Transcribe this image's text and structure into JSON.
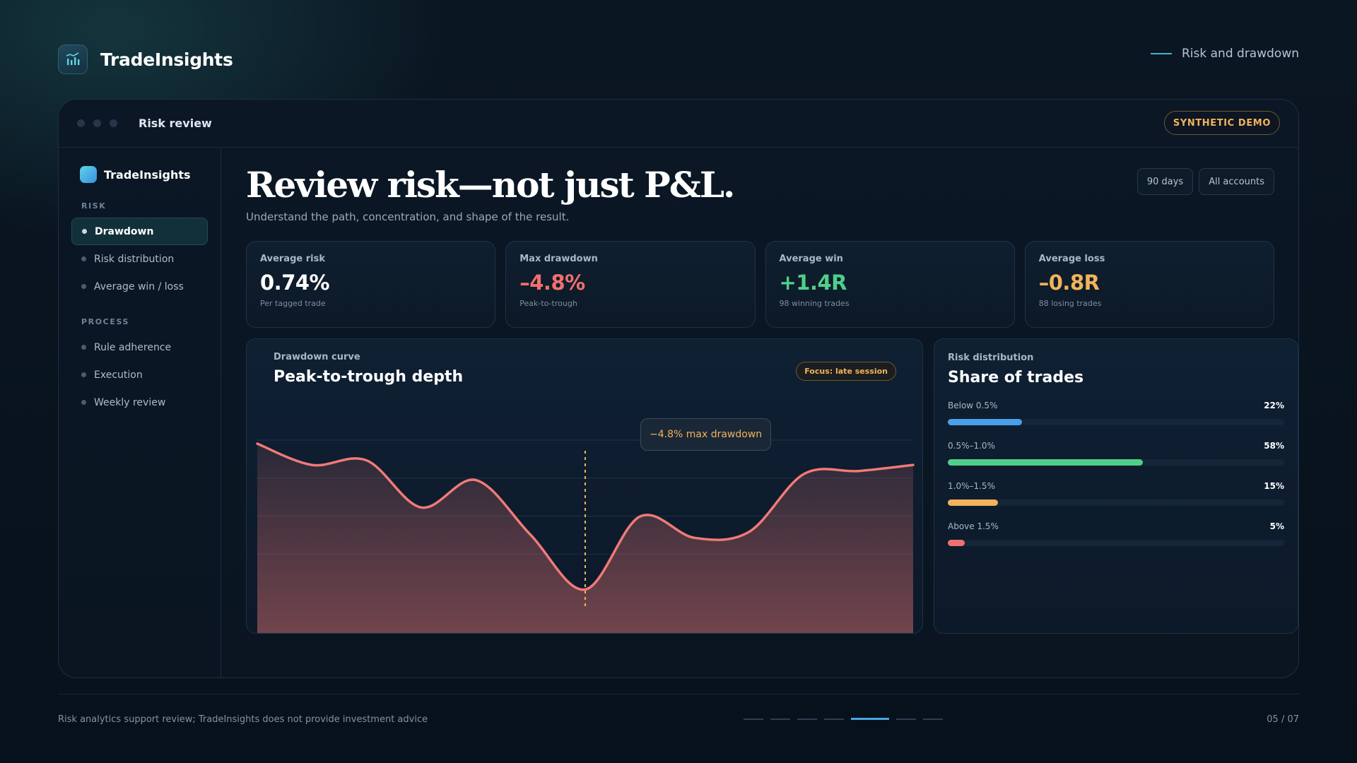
{
  "header": {
    "brand": "TradeInsights",
    "brand_icon": "bar-chart-icon",
    "section_label": "Risk and drawdown"
  },
  "window": {
    "title": "Risk review",
    "badge": "SYNTHETIC DEMO"
  },
  "sidebar": {
    "brand": "TradeInsights",
    "groups": [
      {
        "label": "RISK",
        "items": [
          {
            "label": "Drawdown",
            "active": true
          },
          {
            "label": "Risk distribution",
            "active": false
          },
          {
            "label": "Average win / loss",
            "active": false
          }
        ]
      },
      {
        "label": "PROCESS",
        "items": [
          {
            "label": "Rule adherence",
            "active": false
          },
          {
            "label": "Execution",
            "active": false
          },
          {
            "label": "Weekly review",
            "active": false
          }
        ]
      }
    ]
  },
  "main": {
    "headline": "Review risk—not just P&L.",
    "subline": "Understand the path, concentration, and shape of the result.",
    "filters": {
      "period": "90 days",
      "accounts": "All accounts"
    }
  },
  "kpis": [
    {
      "label": "Average risk",
      "value": "0.74%",
      "note": "Per tagged trade",
      "color": "#ffffff"
    },
    {
      "label": "Max drawdown",
      "value": "–4.8%",
      "note": "Peak-to-trough",
      "color": "#f0706e"
    },
    {
      "label": "Average win",
      "value": "+1.4R",
      "note": "98 winning trades",
      "color": "#4fcf8a"
    },
    {
      "label": "Average loss",
      "value": "–0.8R",
      "note": "88 losing trades",
      "color": "#f2b35a"
    }
  ],
  "drawdown_card": {
    "eyebrow": "Drawdown curve",
    "title": "Peak-to-trough depth",
    "badge": "Focus: late session",
    "tooltip": "−4.8% max drawdown",
    "line_color": "#f07a78",
    "marker_color": "#f2b35a"
  },
  "distribution_card": {
    "eyebrow": "Risk distribution",
    "title": "Share of trades"
  },
  "chart_data": [
    {
      "type": "area",
      "title": "Peak-to-trough depth",
      "grid": true,
      "x": [
        0,
        1,
        2,
        3,
        4,
        5,
        6,
        7,
        8,
        9,
        10,
        11,
        12
      ],
      "y": [
        0.0,
        -0.7,
        -0.55,
        -2.1,
        -1.2,
        -3.0,
        -4.8,
        -2.4,
        -3.1,
        -2.9,
        -1.0,
        -0.9,
        -0.7
      ],
      "annotations": [
        {
          "x": 6,
          "label": "−4.8% max drawdown"
        }
      ]
    },
    {
      "type": "bar",
      "title": "Share of trades",
      "categories": [
        "Below 0.5%",
        "0.5%–1.0%",
        "1.0%–1.5%",
        "Above 1.5%"
      ],
      "values": [
        22,
        58,
        15,
        5
      ],
      "labels": [
        "22%",
        "58%",
        "15%",
        "5%"
      ],
      "colors": [
        "#4a9fe8",
        "#4fcf8a",
        "#f2b35a",
        "#f0706e"
      ],
      "ylim": [
        0,
        100
      ]
    }
  ],
  "footer": {
    "disclaimer": "Risk analytics support review; TradeInsights does not provide investment advice",
    "page": "05 / 07",
    "pager_count": 7,
    "pager_active": 5
  }
}
